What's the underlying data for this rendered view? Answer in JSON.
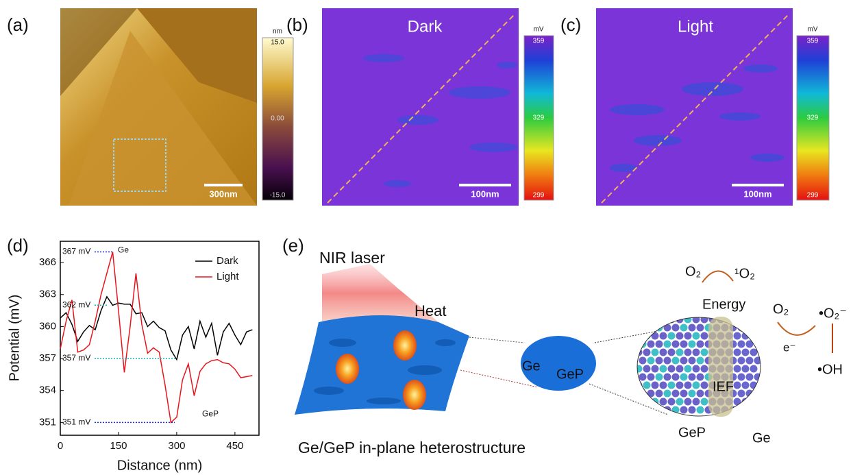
{
  "panels": {
    "a": {
      "label": "(a)",
      "colorbar": {
        "unit": "nm",
        "ticks": [
          "15.0",
          "0.00",
          "-15.0"
        ]
      },
      "scale_bar": "300nm"
    },
    "b": {
      "label": "(b)",
      "title": "Dark",
      "colorbar": {
        "unit": "mV",
        "ticks": [
          "359",
          "329",
          "299"
        ]
      },
      "scale_bar": "100nm"
    },
    "c": {
      "label": "(c)",
      "title": "Light",
      "colorbar": {
        "unit": "mV",
        "ticks": [
          "359",
          "329",
          "299"
        ]
      },
      "scale_bar": "100nm"
    },
    "d": {
      "label": "(d)"
    },
    "e": {
      "label": "(e)",
      "laser": "NIR laser",
      "heat": "Heat",
      "caption": "Ge/GeP in-plane heterostructure",
      "small_ge": "Ge",
      "small_gep": "GeP",
      "o2_a": "O₂",
      "singlet_o2": "¹O₂",
      "energy": "Energy",
      "o2_b": "O₂",
      "superoxide": "•O₂⁻",
      "electron": "e⁻",
      "hydroxyl": "•OH",
      "ief": "IEF",
      "big_gep": "GeP",
      "big_ge": "Ge"
    }
  },
  "chart_data": {
    "type": "line",
    "x_label": "Distance (nm)",
    "y_label": "Potential (mV)",
    "x": [
      0,
      15,
      30,
      45,
      60,
      75,
      90,
      105,
      120,
      135,
      150,
      165,
      180,
      195,
      210,
      225,
      240,
      255,
      270,
      285,
      300,
      315,
      330,
      345,
      360,
      375,
      390,
      405,
      420,
      435,
      450,
      465,
      480,
      495
    ],
    "series": [
      {
        "name": "Dark",
        "color": "#000000",
        "values": [
          360.8,
          361.3,
          360.2,
          358.6,
          359.5,
          360.1,
          359.7,
          361.5,
          362.8,
          362.0,
          362.2,
          362.1,
          362.1,
          361.2,
          361.3,
          360.0,
          360.5,
          359.9,
          359.6,
          357.8,
          356.9,
          359.2,
          360.0,
          357.9,
          360.5,
          359.0,
          360.3,
          357.3,
          359.5,
          360.3,
          359.2,
          358.3,
          359.5,
          359.7
        ]
      },
      {
        "name": "Light",
        "color": "#e8141c",
        "values": [
          357.9,
          360.5,
          362.5,
          357.6,
          357.8,
          358.3,
          360.5,
          363.0,
          365.0,
          367.0,
          361.5,
          355.7,
          360.0,
          365.0,
          360.2,
          357.5,
          358.0,
          357.6,
          354.5,
          351.0,
          351.5,
          355.0,
          356.5,
          353.5,
          355.8,
          356.5,
          356.8,
          356.9,
          356.6,
          356.5,
          356.0,
          355.2,
          355.3,
          355.4
        ]
      }
    ],
    "xlim": [
      0,
      512
    ],
    "ylim": [
      349.8,
      368
    ],
    "xticks": [
      0,
      150,
      300,
      450
    ],
    "yticks": [
      351,
      354,
      357,
      360,
      363,
      366
    ],
    "legend": "upper right",
    "annotations": [
      {
        "label": "367 mV",
        "value": 367
      },
      {
        "label": "362 mV",
        "value": 362
      },
      {
        "label": "357 mV",
        "value": 357
      },
      {
        "label": "351 mV",
        "value": 351
      }
    ],
    "point_labels": [
      "Ge",
      "GeP"
    ]
  }
}
